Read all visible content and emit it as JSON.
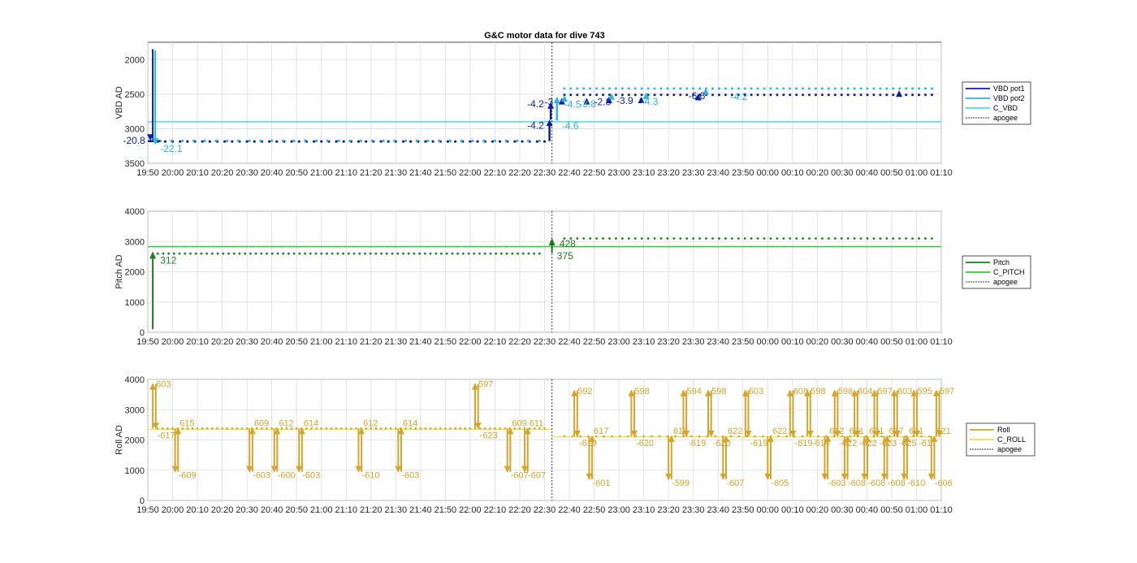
{
  "chart_data": [
    {
      "type": "line",
      "title": "G&C motor data for dive 743",
      "ylabel": "VBD AD",
      "ylim": [
        3500,
        1750
      ],
      "yticks": [
        2000,
        2500,
        3000,
        3500
      ],
      "reversed_y": true,
      "x_range_min": [
        0,
        200
      ],
      "xticks": [
        "19:50",
        "20:00",
        "20:10",
        "20:20",
        "20:30",
        "20:40",
        "20:50",
        "21:00",
        "21:10",
        "21:20",
        "21:30",
        "21:40",
        "21:50",
        "22:00",
        "22:10",
        "22:20",
        "22:30",
        "22:40",
        "22:50",
        "23:00",
        "23:10",
        "23:20",
        "23:30",
        "23:40",
        "23:50",
        "00:00",
        "00:10",
        "00:20",
        "00:30",
        "00:40",
        "00:50",
        "01:00",
        "01:10"
      ],
      "grid": true,
      "apogee_min": 163,
      "legend_position": "right",
      "legend": [
        {
          "name": "VBD pot1",
          "color": "#0a1f9e",
          "style": "solid"
        },
        {
          "name": "VBD pot2",
          "color": "#2bb5e0",
          "style": "solid"
        },
        {
          "name": "C_VBD",
          "color": "#40e0e6",
          "style": "solid"
        },
        {
          "name": "apogee",
          "color": "#333333",
          "style": "dotted"
        }
      ],
      "series": [
        {
          "name": "VBD pot1",
          "color": "#0a1f9e",
          "level_before": 3185,
          "level_after": 2510,
          "spike_min": [
            2,
            1850
          ]
        },
        {
          "name": "VBD pot2",
          "color": "#2bb5e0",
          "level_before": 3175,
          "level_after": 2420,
          "spike_min": [
            3,
            1870
          ]
        },
        {
          "name": "C_VBD",
          "color": "#40e0e6",
          "level": 2900
        }
      ],
      "pumps": [
        {
          "x": 162,
          "from": 3180,
          "to": 2890,
          "color": "#0a1f9e"
        },
        {
          "x": 162.5,
          "from": 2870,
          "to": 2640,
          "color": "#0a1f9e"
        },
        {
          "x": 165,
          "from": 2880,
          "to": 2560,
          "color": "#2bb5e0"
        },
        {
          "x": 167,
          "from": 2620,
          "to": 2580,
          "color": "#0a1f9e"
        },
        {
          "x": 168,
          "from": 2570,
          "to": 2540,
          "color": "#2bb5e0"
        },
        {
          "x": 177,
          "from": 2600,
          "to": 2580,
          "color": "#0a1f9e"
        },
        {
          "x": 186,
          "from": 2590,
          "to": 2560,
          "color": "#0a1f9e"
        },
        {
          "x": 187,
          "from": 2560,
          "to": 2510,
          "color": "#2bb5e0"
        },
        {
          "x": 199,
          "from": 2580,
          "to": 2560,
          "color": "#0a1f9e"
        },
        {
          "x": 201,
          "from": 2540,
          "to": 2500,
          "color": "#2bb5e0"
        },
        {
          "x": 222,
          "from": 2540,
          "to": 2520,
          "color": "#0a1f9e"
        },
        {
          "x": 225,
          "from": 2470,
          "to": 2440,
          "color": "#2bb5e0"
        },
        {
          "x": 303,
          "from": 2510,
          "to": 2470,
          "color": "#0a1f9e"
        }
      ],
      "bleeds": [
        {
          "x": 1,
          "from": 1830,
          "to": 3150,
          "color": "#0a1f9e"
        },
        {
          "x": 3,
          "from": 3190,
          "to": 3210,
          "color": "#2bb5e0"
        }
      ],
      "annotations": [
        {
          "x": -10,
          "y": 3170,
          "text": "-20.8",
          "color": "#0a1f9e"
        },
        {
          "x": 5,
          "y": 3290,
          "text": "-22.1",
          "color": "#2bb5e0"
        },
        {
          "x": 153,
          "y": 2955,
          "text": "-4.2",
          "color": "#0a1f9e"
        },
        {
          "x": 167,
          "y": 2960,
          "text": "-4.6",
          "color": "#2bb5e0"
        },
        {
          "x": 153,
          "y": 2645,
          "text": "-4.2",
          "color": "#0a1f9e"
        },
        {
          "x": 160,
          "y": 2615,
          "text": "-3",
          "color": "#0a1f9e"
        },
        {
          "x": 168,
          "y": 2650,
          "text": "-4.5",
          "color": "#2bb5e0"
        },
        {
          "x": 174,
          "y": 2640,
          "text": "-3.8",
          "color": "#2bb5e0"
        },
        {
          "x": 180,
          "y": 2615,
          "text": "-2.8",
          "color": "#0a1f9e"
        },
        {
          "x": 189,
          "y": 2595,
          "text": "-3.9",
          "color": "#0a1f9e"
        },
        {
          "x": 199,
          "y": 2610,
          "text": "-4.3",
          "color": "#2bb5e0"
        },
        {
          "x": 218,
          "y": 2525,
          "text": "-6.6",
          "color": "#0a1f9e"
        },
        {
          "x": 235,
          "y": 2535,
          "text": "-4.2",
          "color": "#2bb5e0"
        }
      ]
    },
    {
      "type": "line",
      "ylabel": "Pitch AD",
      "ylim": [
        0,
        4000
      ],
      "yticks": [
        0,
        1000,
        2000,
        3000,
        4000
      ],
      "x_range_min": [
        0,
        200
      ],
      "grid": true,
      "apogee_min": 163,
      "legend_position": "right",
      "legend": [
        {
          "name": "Pitch",
          "color": "#1e7e1e",
          "style": "solid"
        },
        {
          "name": "C_PITCH",
          "color": "#33cc33",
          "style": "solid"
        },
        {
          "name": "apogee",
          "color": "#333333",
          "style": "dotted"
        }
      ],
      "series": [
        {
          "name": "Pitch",
          "color": "#1e7e1e",
          "level_before": 2600,
          "level_after": 3100
        },
        {
          "name": "C_PITCH",
          "color": "#33cc33",
          "level": 2830
        }
      ],
      "moves": [
        {
          "x": 2,
          "from": 100,
          "to": 2620,
          "color": "#1e7e1e"
        },
        {
          "x": 163,
          "from": 2620,
          "to": 3060,
          "color": "#1e7e1e"
        }
      ],
      "annotations": [
        {
          "x": 5,
          "y": 2370,
          "text": "312",
          "color": "#1e7e1e"
        },
        {
          "x": 166,
          "y": 2920,
          "text": "428",
          "color": "#1e7e1e"
        },
        {
          "x": 165,
          "y": 2530,
          "text": "375",
          "color": "#1e7e1e"
        }
      ]
    },
    {
      "type": "line",
      "ylabel": "Roll AD",
      "ylim": [
        0,
        4000
      ],
      "yticks": [
        0,
        1000,
        2000,
        3000,
        4000
      ],
      "x_range_min": [
        0,
        200
      ],
      "grid": true,
      "apogee_min": 163,
      "legend_position": "right",
      "legend": [
        {
          "name": "Roll",
          "color": "#d4a52b",
          "style": "solid"
        },
        {
          "name": "C_ROLL",
          "color": "#f0e040",
          "style": "solid"
        },
        {
          "name": "apogee",
          "color": "#333333",
          "style": "dotted"
        }
      ],
      "series": [
        {
          "name": "Roll",
          "color": "#d4a52b",
          "level_before": 2380,
          "level_after": 2120
        },
        {
          "name": "C_ROLL",
          "color": "#f0e040",
          "level_before": 2350,
          "level_after": 2100
        }
      ],
      "excursions": [
        {
          "x": 2,
          "peak": 3850,
          "label_peak": "603",
          "label_back": "-617"
        },
        {
          "x": 11,
          "peak": 950,
          "label_peak": "-609",
          "label_back": "615"
        },
        {
          "x": 41,
          "peak": 950,
          "label_peak": "-603",
          "label_back": "609"
        },
        {
          "x": 51,
          "peak": 950,
          "label_peak": "-600",
          "label_back": "612"
        },
        {
          "x": 61,
          "peak": 950,
          "label_peak": "-603",
          "label_back": "614"
        },
        {
          "x": 85,
          "peak": 950,
          "label_peak": "-610",
          "label_back": "612"
        },
        {
          "x": 101,
          "peak": 950,
          "label_peak": "-603",
          "label_back": "614"
        },
        {
          "x": 132,
          "peak": 3850,
          "label_peak": "597",
          "label_back": "-623"
        },
        {
          "x": 145,
          "peak": 950,
          "label_peak": "-607",
          "label_back": "609"
        },
        {
          "x": 152,
          "peak": 950,
          "label_peak": "-607",
          "label_back": "611"
        },
        {
          "x": 172,
          "peak": 3630,
          "label_peak": "592",
          "label_back": "-619"
        },
        {
          "x": 178,
          "peak": 700,
          "label_peak": "-601",
          "label_back": "617"
        },
        {
          "x": 195,
          "peak": 3630,
          "label_peak": "598",
          "label_back": "-620"
        },
        {
          "x": 210,
          "peak": 700,
          "label_peak": "-599",
          "label_back": "613"
        },
        {
          "x": 216,
          "peak": 3630,
          "label_peak": "594",
          "label_back": "-619"
        },
        {
          "x": 226,
          "peak": 3630,
          "label_peak": "598",
          "label_back": "-620"
        },
        {
          "x": 232,
          "peak": 700,
          "label_peak": "-607",
          "label_back": "622"
        },
        {
          "x": 241,
          "peak": 3630,
          "label_peak": "603",
          "label_back": "-619"
        },
        {
          "x": 250,
          "peak": 700,
          "label_peak": "-605",
          "label_back": "622"
        },
        {
          "x": 259,
          "peak": 3630,
          "label_peak": "608",
          "label_back": "-619"
        },
        {
          "x": 266,
          "peak": 3630,
          "label_peak": "598",
          "label_back": "-614"
        },
        {
          "x": 273,
          "peak": 700,
          "label_peak": "-603",
          "label_back": "612"
        },
        {
          "x": 277,
          "peak": 3630,
          "label_peak": "598",
          "label_back": "-622"
        },
        {
          "x": 281,
          "peak": 700,
          "label_peak": "-608",
          "label_back": "621"
        },
        {
          "x": 285,
          "peak": 3630,
          "label_peak": "604",
          "label_back": "-622"
        },
        {
          "x": 289,
          "peak": 700,
          "label_peak": "-608",
          "label_back": "621"
        },
        {
          "x": 293,
          "peak": 3630,
          "label_peak": "597",
          "label_back": "-623"
        },
        {
          "x": 297,
          "peak": 700,
          "label_peak": "-608",
          "label_back": "617"
        },
        {
          "x": 301,
          "peak": 3630,
          "label_peak": "603",
          "label_back": "-625"
        },
        {
          "x": 305,
          "peak": 700,
          "label_peak": "-610",
          "label_back": "621"
        },
        {
          "x": 309,
          "peak": 3630,
          "label_peak": "595",
          "label_back": "-617"
        },
        {
          "x": 316,
          "peak": 700,
          "label_peak": "-606",
          "label_back": "621"
        },
        {
          "x": 318,
          "peak": 3630,
          "label_peak": "597",
          "label_back": ""
        }
      ]
    }
  ]
}
